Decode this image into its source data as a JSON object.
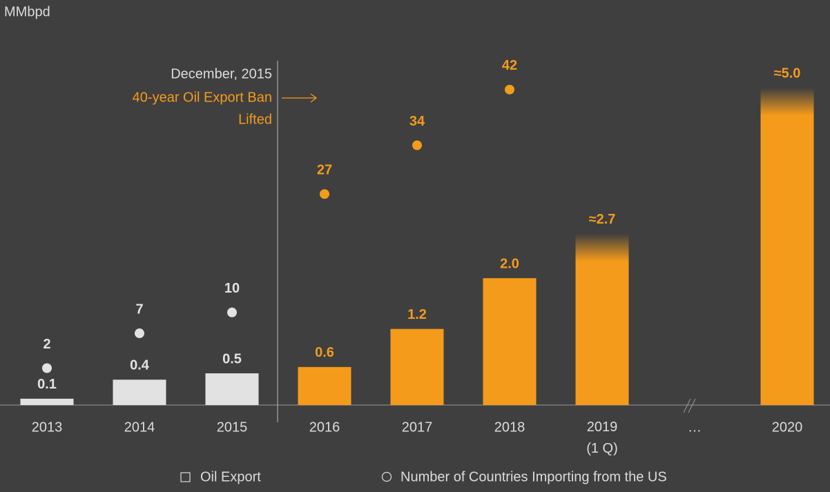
{
  "chart_data": {
    "type": "bar_dot",
    "y_unit_label": "MMbpd",
    "categories": [
      "2013",
      "2014",
      "2015",
      "2016",
      "2017",
      "2018",
      "2019\n(1 Q)",
      "…",
      "2020"
    ],
    "series": [
      {
        "name": "Oil Export",
        "kind": "bar",
        "colors": [
          "#e2e2e2",
          "#e2e2e2",
          "#e2e2e2",
          "#f59b1c",
          "#f59b1c",
          "#f59b1c",
          "#f59b1c",
          null,
          "#f59b1c"
        ],
        "values": [
          0.1,
          0.4,
          0.5,
          0.6,
          1.2,
          2.0,
          2.7,
          null,
          5.0
        ],
        "value_labels": [
          "0.1",
          "0.4",
          "0.5",
          "0.6",
          "1.2",
          "2.0",
          "≈2.7",
          null,
          "≈5.0"
        ],
        "faded_top": [
          false,
          false,
          false,
          false,
          false,
          false,
          true,
          false,
          true
        ]
      },
      {
        "name": "Number of Countries Importing from the US",
        "kind": "dot",
        "axis": "y2",
        "colors": [
          "#e2e2e2",
          "#e2e2e2",
          "#e2e2e2",
          "#f59b1c",
          "#f59b1c",
          "#f59b1c",
          null,
          null,
          null
        ],
        "values": [
          2,
          7,
          10,
          27,
          34,
          42,
          null,
          null,
          null
        ]
      }
    ],
    "ylim": [
      0,
      5.95
    ],
    "y2lim": [
      -3.3,
      50.9
    ],
    "annotation": {
      "date": "December, 2015",
      "text": [
        "40-year Oil Export Ban",
        "Lifted"
      ]
    }
  }
}
